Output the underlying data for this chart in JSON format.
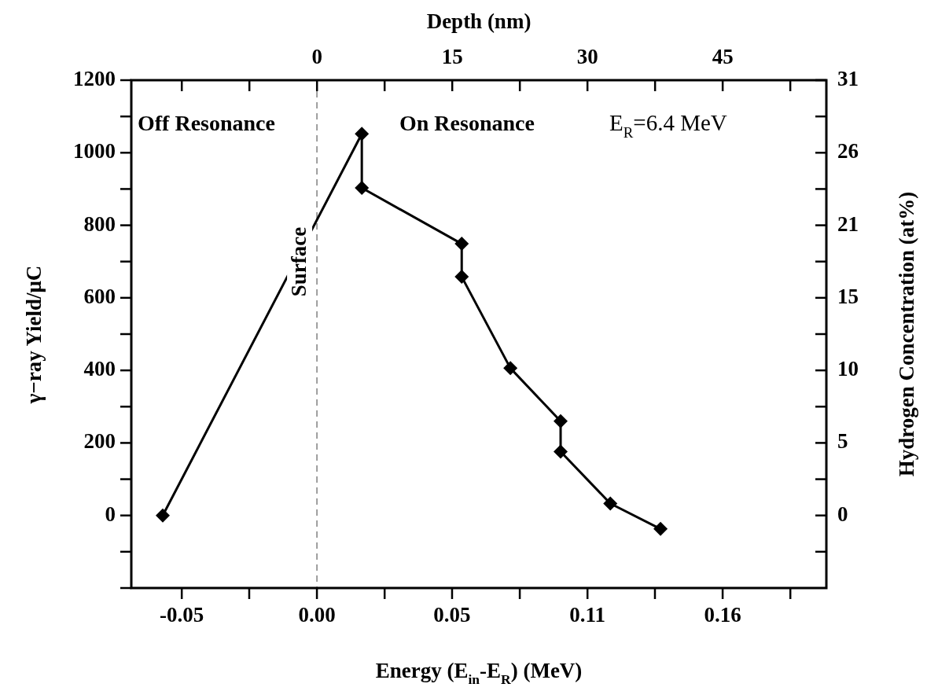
{
  "chart_data": {
    "type": "line",
    "xlabel": "Energy (E$_{in}$-E$_{R}$) (MeV)",
    "ylabel": "γ−ray Yield/μC",
    "y2label": "Hydrogen Concentration (at%)",
    "x2label": "Depth (nm)",
    "x": [
      -0.0608,
      0.0177,
      0.0177,
      0.0571,
      0.0571,
      0.0763,
      0.0961,
      0.0961,
      0.1157,
      0.1355
    ],
    "values": [
      0,
      1052,
      903,
      749,
      658,
      406,
      260,
      176,
      33,
      -37
    ],
    "color": "#000000",
    "marker": "diamond",
    "line_style": "solid",
    "xlim": [
      -0.0732,
      0.2009
    ],
    "xticks": [
      {
        "value": -0.0533,
        "label": "-0.05"
      },
      {
        "value": -0.0267,
        "label": null
      },
      {
        "value": 0,
        "label": "0.00"
      },
      {
        "value": 0.0267,
        "label": null
      },
      {
        "value": 0.0533,
        "label": "0.05"
      },
      {
        "value": 0.08,
        "label": null
      },
      {
        "value": 0.1067,
        "label": "0.11"
      },
      {
        "value": 0.1333,
        "label": null
      },
      {
        "value": 0.16,
        "label": "0.16"
      },
      {
        "value": 0.1867,
        "label": null
      }
    ],
    "x2lim": [
      -20.6,
      56.5
    ],
    "x2ticks": [
      {
        "value": -15,
        "label": null
      },
      {
        "value": -7.5,
        "label": null
      },
      0,
      {
        "value": 7.5,
        "label": null
      },
      15,
      {
        "value": 22.5,
        "label": null
      },
      30,
      {
        "value": 37.5,
        "label": null
      },
      45,
      {
        "value": 52.5,
        "label": null
      }
    ],
    "ylim": [
      -200,
      1200
    ],
    "yticks": [
      {
        "value": -200,
        "label": null
      },
      {
        "value": -100,
        "label": null
      },
      0,
      {
        "value": 100,
        "label": null
      },
      200,
      {
        "value": 300,
        "label": null
      },
      400,
      {
        "value": 500,
        "label": null
      },
      600,
      {
        "value": 700,
        "label": null
      },
      800,
      {
        "value": 900,
        "label": null
      },
      1000,
      {
        "value": 1100,
        "label": null
      },
      1200
    ],
    "y2lim": [
      -5.167,
      31
    ],
    "y2ticks": [
      {
        "value": -2.583,
        "label": null
      },
      0,
      {
        "value": 2.583,
        "label": null
      },
      {
        "value": 5.167,
        "label": "5"
      },
      {
        "value": 7.75,
        "label": null
      },
      {
        "value": 10.333,
        "label": "10"
      },
      {
        "value": 12.917,
        "label": null
      },
      {
        "value": 15.5,
        "label": "15"
      },
      {
        "value": 18.083,
        "label": null
      },
      {
        "value": 20.667,
        "label": "21"
      },
      {
        "value": 23.25,
        "label": null
      },
      {
        "value": 25.833,
        "label": "26"
      },
      {
        "value": 28.417,
        "label": null
      },
      31
    ],
    "ref_lines": [
      {
        "axis": "x",
        "value": 0,
        "label": "Surface",
        "color": "#808080",
        "line_style": "dashed"
      }
    ],
    "annotations": [
      "Off Resonance",
      "On Resonance",
      "E$_{R}$=6.4 MeV"
    ]
  }
}
